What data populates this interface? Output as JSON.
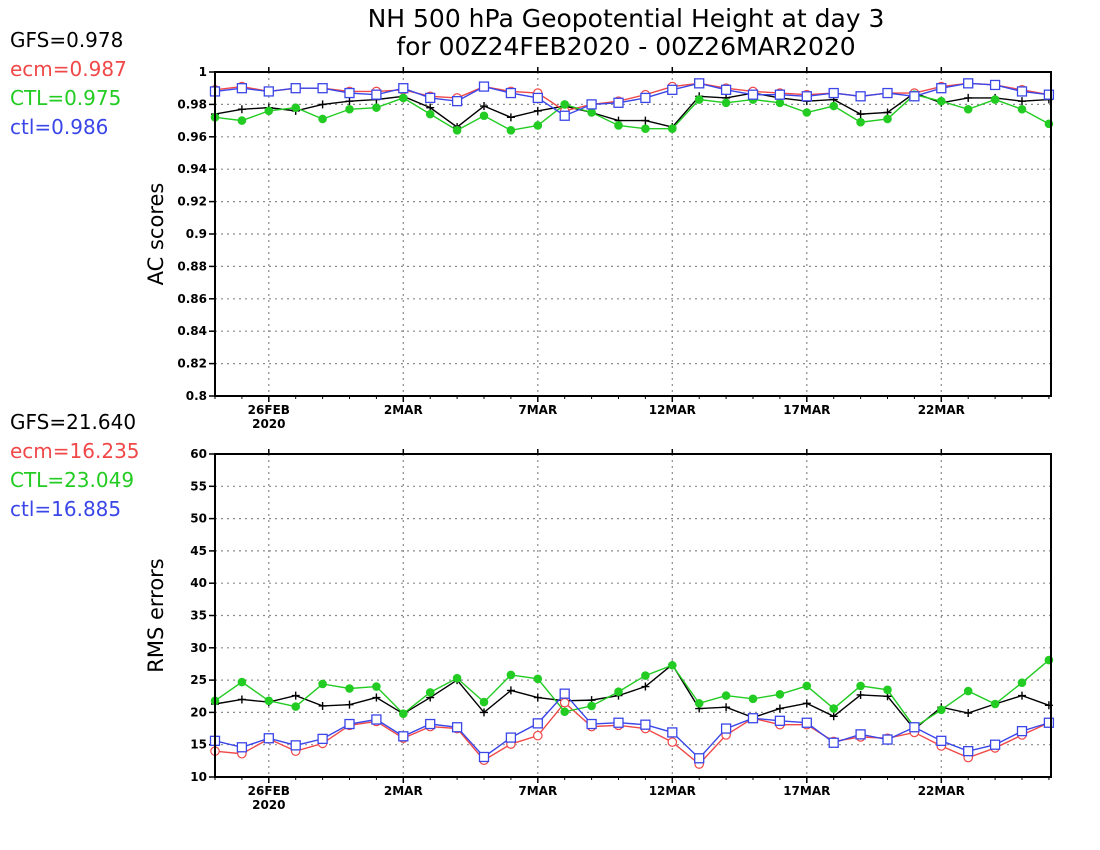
{
  "title": {
    "line1": "NH 500 hPa Geopotential Height at day 3",
    "line2": "for 00Z24FEB2020 - 00Z26MAR2020"
  },
  "colors": {
    "GFS": "#000000",
    "ecm": "#f04848",
    "CTL": "#22cc22",
    "ctl": "#3a46e8"
  },
  "x_axis": {
    "ticks": [
      {
        "day": 2,
        "label": "26FEB",
        "sub": "2020"
      },
      {
        "day": 7,
        "label": "2MAR",
        "sub": ""
      },
      {
        "day": 12,
        "label": "7MAR",
        "sub": ""
      },
      {
        "day": 17,
        "label": "12MAR",
        "sub": ""
      },
      {
        "day": 22,
        "label": "17MAR",
        "sub": ""
      },
      {
        "day": 27,
        "label": "22MAR",
        "sub": ""
      }
    ]
  },
  "chart_data": [
    {
      "type": "line",
      "ylabel": "AC scores",
      "ylim": [
        0.8,
        1.0
      ],
      "yticks": [
        0.8,
        0.82,
        0.84,
        0.86,
        0.88,
        0.9,
        0.92,
        0.94,
        0.96,
        0.98,
        1
      ],
      "ytick_labels": [
        "0.8",
        "0.82",
        "0.84",
        "0.86",
        "0.88",
        "0.9",
        "0.92",
        "0.94",
        "0.96",
        "0.98",
        "1"
      ],
      "grid": true,
      "x_start_date": "2020-02-24",
      "stats": [
        {
          "text": "GFS=0.978",
          "color_key": "GFS"
        },
        {
          "text": "ecm=0.987",
          "color_key": "ecm"
        },
        {
          "text": "CTL=0.975",
          "color_key": "CTL"
        },
        {
          "text": "ctl=0.986",
          "color_key": "ctl"
        }
      ],
      "series": [
        {
          "color_key": "GFS",
          "marker": "plus",
          "values": [
            0.974,
            0.977,
            0.978,
            0.976,
            0.98,
            0.982,
            0.983,
            0.985,
            0.978,
            0.966,
            0.979,
            0.972,
            0.976,
            0.979,
            0.975,
            0.97,
            0.97,
            0.966,
            0.985,
            0.984,
            0.987,
            0.984,
            0.982,
            0.983,
            0.974,
            0.975,
            0.987,
            0.981,
            0.984,
            0.984,
            0.982,
            0.983
          ]
        },
        {
          "color_key": "ecm",
          "marker": "circle",
          "values": [
            0.989,
            0.991,
            0.988,
            0.99,
            0.99,
            0.988,
            0.988,
            0.989,
            0.985,
            0.984,
            0.991,
            0.988,
            0.987,
            0.976,
            0.98,
            0.982,
            0.986,
            0.991,
            0.993,
            0.99,
            0.988,
            0.987,
            0.986,
            0.987,
            0.985,
            0.987,
            0.987,
            0.991,
            0.993,
            0.992,
            0.989,
            0.986
          ]
        },
        {
          "color_key": "CTL",
          "marker": "dot",
          "values": [
            0.972,
            0.97,
            0.976,
            0.978,
            0.971,
            0.977,
            0.978,
            0.984,
            0.974,
            0.964,
            0.973,
            0.964,
            0.967,
            0.98,
            0.975,
            0.967,
            0.965,
            0.965,
            0.983,
            0.981,
            0.983,
            0.981,
            0.975,
            0.979,
            0.969,
            0.971,
            0.986,
            0.982,
            0.977,
            0.983,
            0.977,
            0.968
          ]
        },
        {
          "color_key": "ctl",
          "marker": "square",
          "values": [
            0.988,
            0.99,
            0.988,
            0.99,
            0.99,
            0.987,
            0.986,
            0.99,
            0.984,
            0.982,
            0.991,
            0.987,
            0.984,
            0.973,
            0.98,
            0.981,
            0.984,
            0.989,
            0.993,
            0.989,
            0.986,
            0.986,
            0.985,
            0.987,
            0.985,
            0.987,
            0.985,
            0.99,
            0.993,
            0.992,
            0.988,
            0.986
          ]
        }
      ]
    },
    {
      "type": "line",
      "ylabel": "RMS errors",
      "ylim": [
        10,
        60
      ],
      "yticks": [
        10,
        15,
        20,
        25,
        30,
        35,
        40,
        45,
        50,
        55,
        60
      ],
      "ytick_labels": [
        "10",
        "15",
        "20",
        "25",
        "30",
        "35",
        "40",
        "45",
        "50",
        "55",
        "60"
      ],
      "grid": true,
      "x_start_date": "2020-02-24",
      "stats": [
        {
          "text": "GFS=21.640",
          "color_key": "GFS"
        },
        {
          "text": "ecm=16.235",
          "color_key": "ecm"
        },
        {
          "text": "CTL=23.049",
          "color_key": "CTL"
        },
        {
          "text": "ctl=16.885",
          "color_key": "ctl"
        }
      ],
      "series": [
        {
          "color_key": "GFS",
          "marker": "plus",
          "values": [
            21.3,
            22.0,
            21.6,
            22.6,
            21.0,
            21.2,
            22.3,
            19.8,
            22.3,
            25.0,
            20.0,
            23.4,
            22.3,
            21.8,
            21.9,
            22.6,
            24.0,
            27.4,
            20.6,
            20.8,
            19.2,
            20.6,
            21.4,
            19.4,
            22.7,
            22.5,
            17.4,
            20.8,
            19.9,
            21.3,
            22.6,
            21.1
          ]
        },
        {
          "color_key": "ecm",
          "marker": "circle",
          "values": [
            14.0,
            13.6,
            15.9,
            14.0,
            15.2,
            18.0,
            18.6,
            16.0,
            17.8,
            17.5,
            12.6,
            15.1,
            16.4,
            21.5,
            17.8,
            18.0,
            17.5,
            15.4,
            12.0,
            16.5,
            19.1,
            18.1,
            18.1,
            15.5,
            16.2,
            16.0,
            16.9,
            14.8,
            13.0,
            14.5,
            16.5,
            18.4
          ]
        },
        {
          "color_key": "CTL",
          "marker": "dot",
          "values": [
            21.8,
            24.7,
            21.8,
            20.9,
            24.4,
            23.7,
            24.0,
            19.8,
            23.1,
            25.3,
            21.6,
            25.8,
            25.2,
            20.1,
            21.0,
            23.2,
            25.7,
            27.3,
            21.4,
            22.6,
            22.1,
            22.8,
            24.1,
            20.6,
            24.1,
            23.5,
            17.7,
            20.4,
            23.3,
            21.3,
            24.6,
            28.1
          ]
        },
        {
          "color_key": "ctl",
          "marker": "square",
          "values": [
            15.6,
            14.6,
            16.0,
            14.9,
            15.9,
            18.2,
            18.9,
            16.3,
            18.2,
            17.7,
            13.1,
            16.1,
            18.3,
            22.9,
            18.2,
            18.4,
            18.1,
            16.9,
            12.9,
            17.5,
            19.1,
            18.7,
            18.4,
            15.3,
            16.6,
            15.8,
            17.7,
            15.6,
            14.0,
            15.0,
            17.1,
            18.4
          ]
        }
      ]
    }
  ]
}
